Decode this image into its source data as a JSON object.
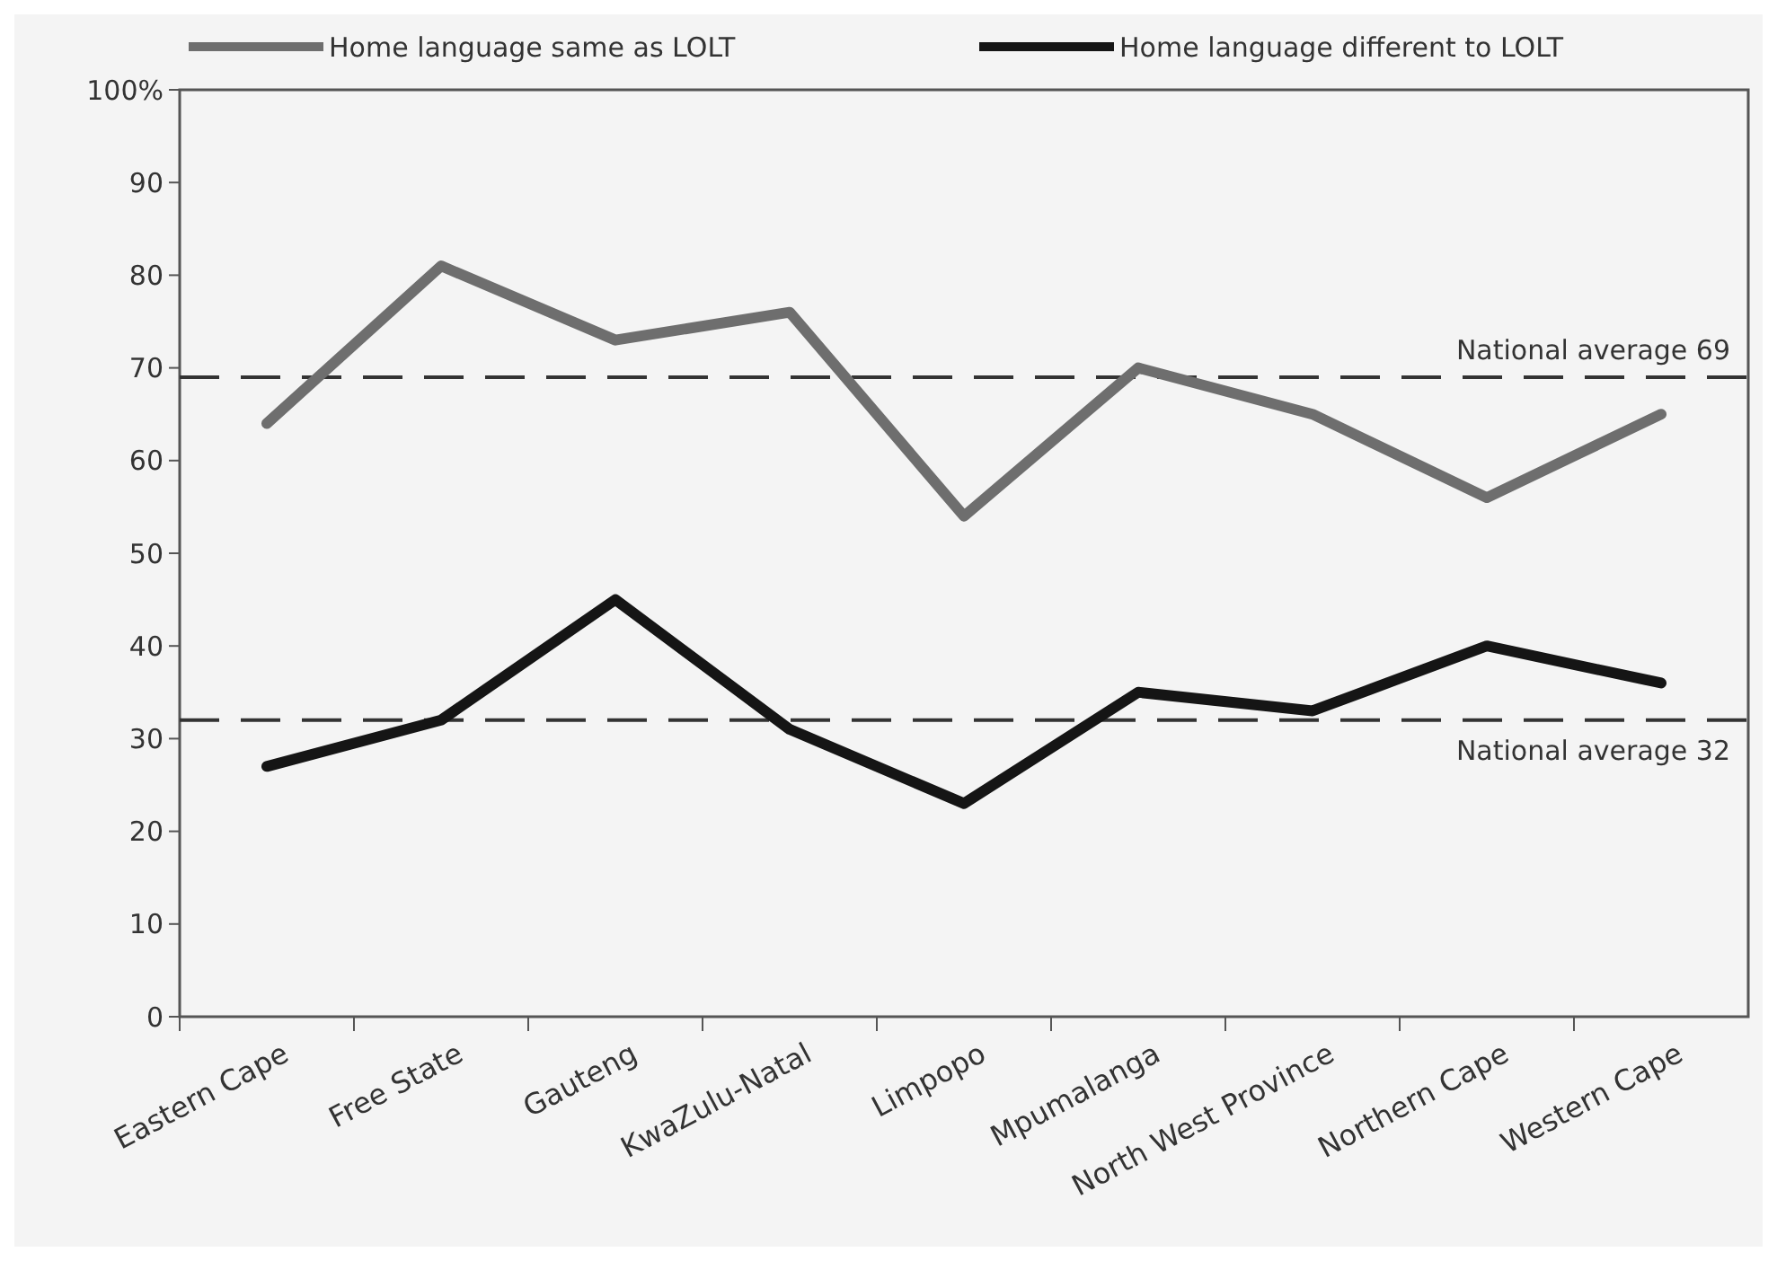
{
  "chart_data": {
    "type": "line",
    "categories": [
      "Eastern Cape",
      "Free State",
      "Gauteng",
      "KwaZulu-Natal",
      "Limpopo",
      "Mpumalanga",
      "North West Province",
      "Northern Cape",
      "Western Cape"
    ],
    "series": [
      {
        "name": "Home language same as LOLT",
        "color": "#6e6e6e",
        "values": [
          64,
          81,
          73,
          76,
          54,
          70,
          65,
          56,
          65
        ]
      },
      {
        "name": "Home language different to LOLT",
        "color": "#151515",
        "values": [
          27,
          32,
          45,
          31,
          23,
          35,
          33,
          40,
          36
        ]
      }
    ],
    "ylim": [
      0,
      100
    ],
    "yticks": [
      {
        "value": 0,
        "label": "0"
      },
      {
        "value": 10,
        "label": "10"
      },
      {
        "value": 20,
        "label": "20"
      },
      {
        "value": 30,
        "label": "30"
      },
      {
        "value": 40,
        "label": "40"
      },
      {
        "value": 50,
        "label": "50"
      },
      {
        "value": 60,
        "label": "60"
      },
      {
        "value": 70,
        "label": "70"
      },
      {
        "value": 80,
        "label": "80"
      },
      {
        "value": 90,
        "label": "90"
      },
      {
        "value": 100,
        "label": "100%"
      }
    ],
    "ref_lines": [
      {
        "axis": "y",
        "value": 69,
        "label": "National average 69",
        "color": "#333333",
        "line_style": "dashed"
      },
      {
        "axis": "y",
        "value": 32,
        "label": "National average 32",
        "color": "#333333",
        "line_style": "dashed"
      }
    ],
    "legend": "top",
    "grid": false,
    "marker": "none",
    "line_style": "solid"
  }
}
